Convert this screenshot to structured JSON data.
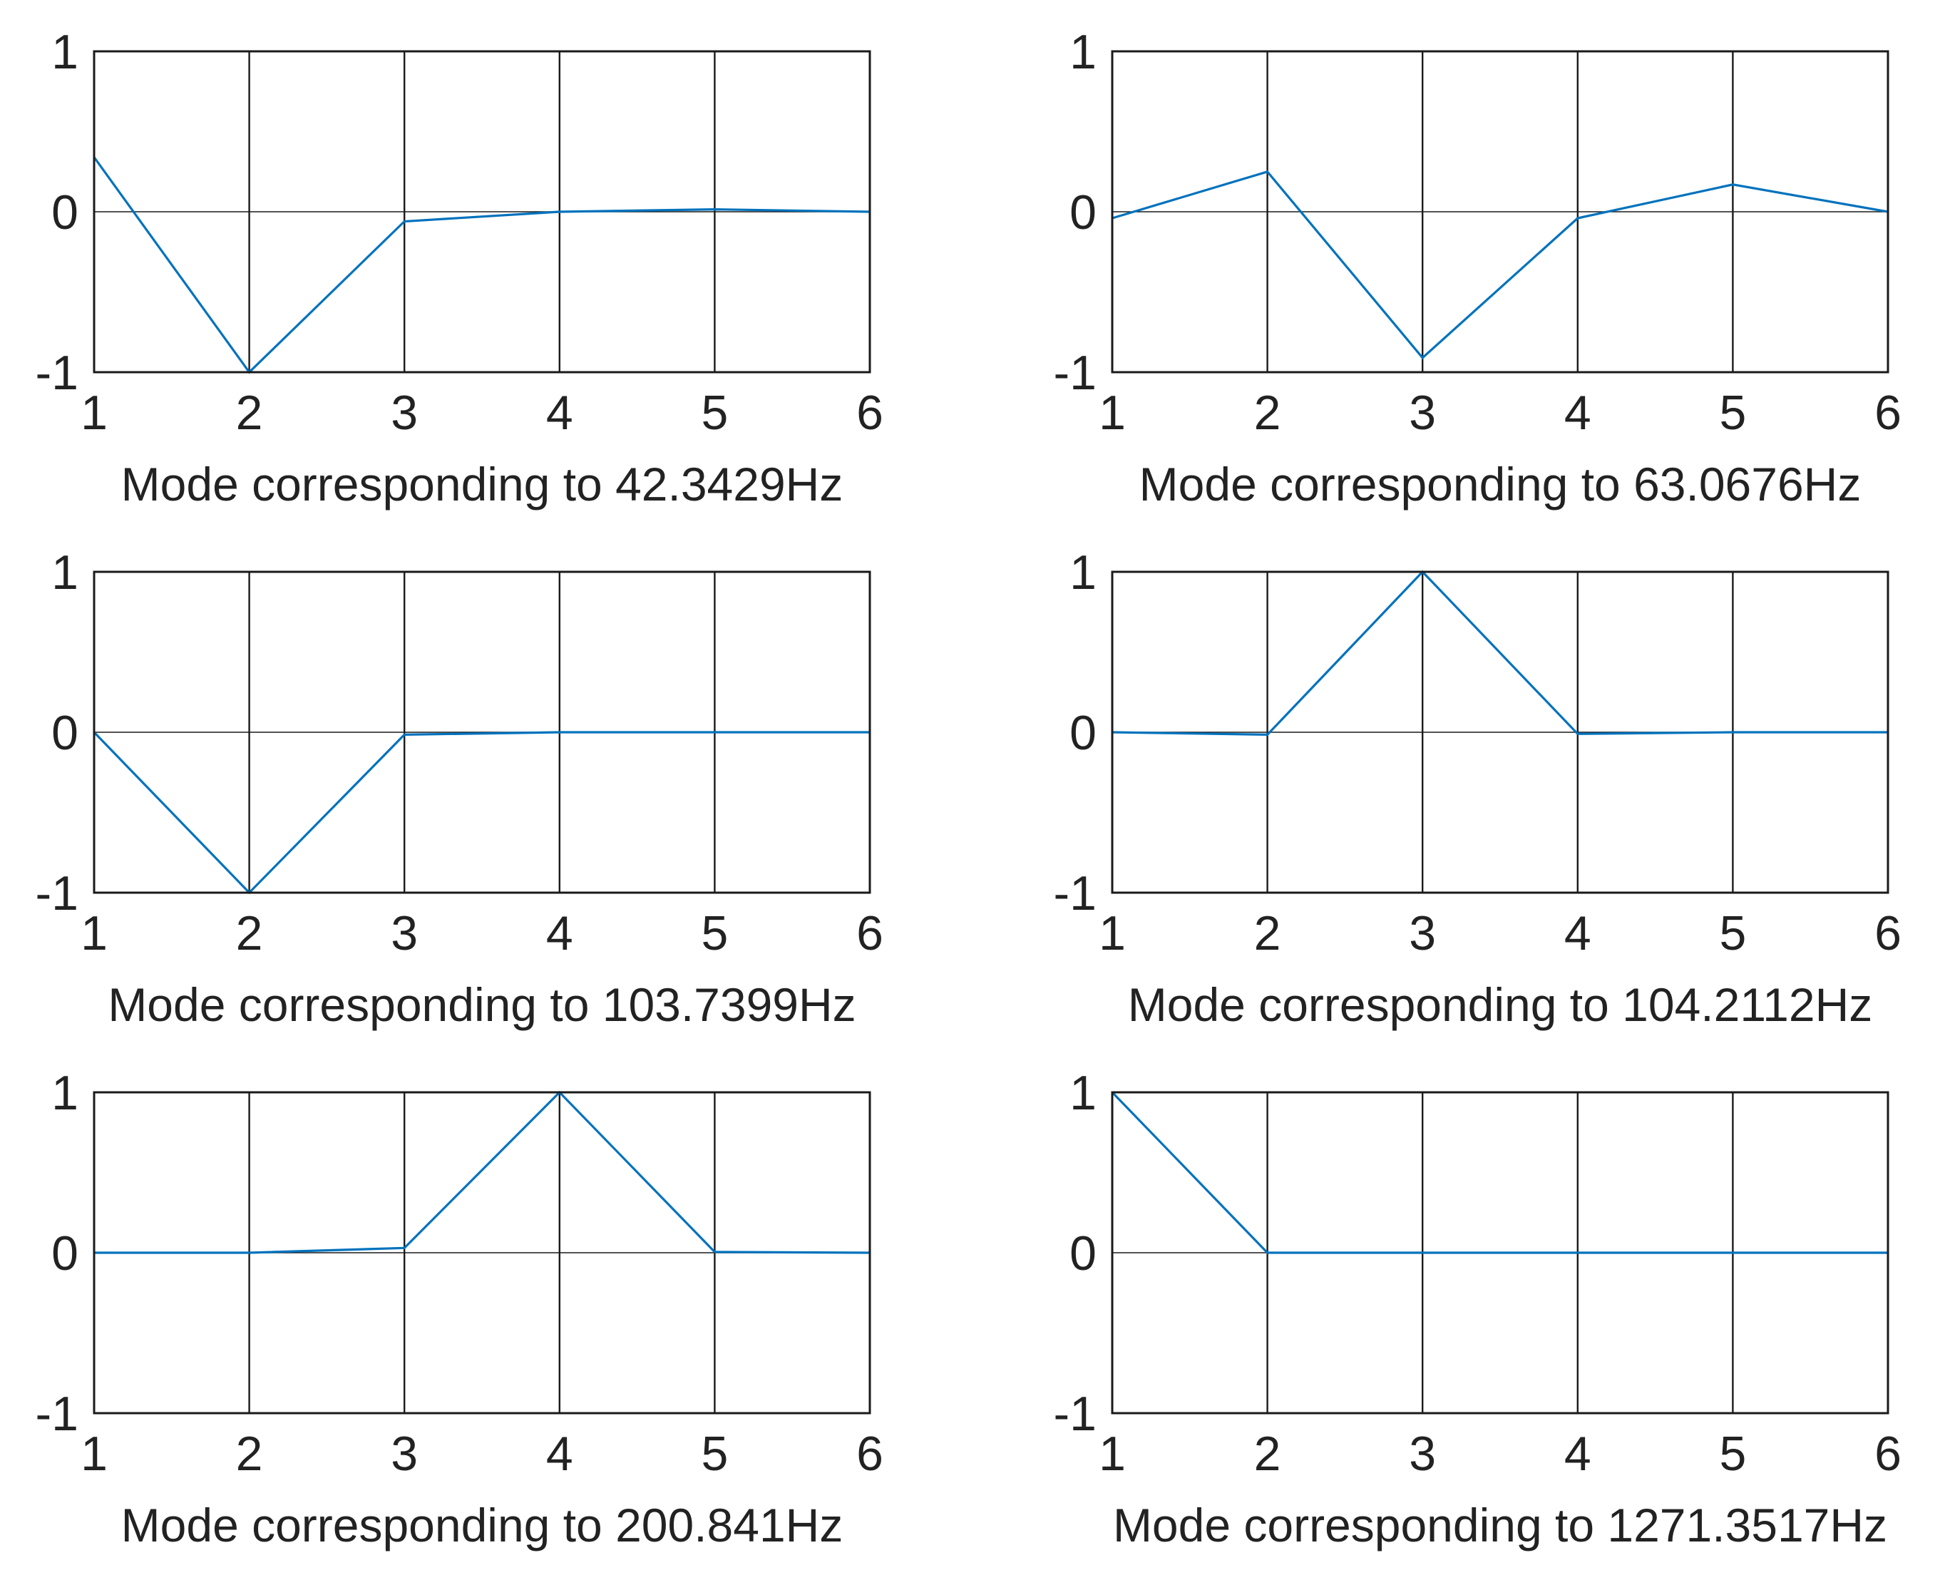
{
  "colors": {
    "line": "#0072BD",
    "axes": "#1a1a1a",
    "grid": "#1a1a1a",
    "background": "#ffffff"
  },
  "chart_data": [
    {
      "type": "line",
      "xlabel": "Mode corresponding to 42.3429Hz",
      "x": [
        1,
        2,
        3,
        4,
        5,
        6
      ],
      "series": [
        {
          "values": [
            0.34,
            -1.0,
            -0.06,
            0.0,
            0.015,
            0.0
          ]
        }
      ],
      "xlim": [
        1,
        6
      ],
      "ylim": [
        -1,
        1
      ],
      "xticks": [
        "1",
        "2",
        "3",
        "4",
        "5",
        "6"
      ],
      "yticks": [
        "-1",
        "0",
        "1"
      ],
      "grid": true
    },
    {
      "type": "line",
      "xlabel": "Mode corresponding to 63.0676Hz",
      "x": [
        1,
        2,
        3,
        4,
        5,
        6
      ],
      "series": [
        {
          "values": [
            -0.04,
            0.25,
            -0.91,
            -0.04,
            0.17,
            0.0
          ]
        }
      ],
      "xlim": [
        1,
        6
      ],
      "ylim": [
        -1,
        1
      ],
      "xticks": [
        "1",
        "2",
        "3",
        "4",
        "5",
        "6"
      ],
      "yticks": [
        "-1",
        "0",
        "1"
      ],
      "grid": true
    },
    {
      "type": "line",
      "xlabel": "Mode corresponding to 103.7399Hz",
      "x": [
        1,
        2,
        3,
        4,
        5,
        6
      ],
      "series": [
        {
          "values": [
            0.0,
            -1.0,
            -0.015,
            0.0,
            0.0,
            0.0
          ]
        }
      ],
      "xlim": [
        1,
        6
      ],
      "ylim": [
        -1,
        1
      ],
      "xticks": [
        "1",
        "2",
        "3",
        "4",
        "5",
        "6"
      ],
      "yticks": [
        "-1",
        "0",
        "1"
      ],
      "grid": true
    },
    {
      "type": "line",
      "xlabel": "Mode corresponding to 104.2112Hz",
      "x": [
        1,
        2,
        3,
        4,
        5,
        6
      ],
      "series": [
        {
          "values": [
            0.0,
            -0.015,
            1.0,
            -0.01,
            0.0,
            0.0
          ]
        }
      ],
      "xlim": [
        1,
        6
      ],
      "ylim": [
        -1,
        1
      ],
      "xticks": [
        "1",
        "2",
        "3",
        "4",
        "5",
        "6"
      ],
      "yticks": [
        "-1",
        "0",
        "1"
      ],
      "grid": true
    },
    {
      "type": "line",
      "xlabel": "Mode corresponding to 200.841Hz",
      "x": [
        1,
        2,
        3,
        4,
        5,
        6
      ],
      "series": [
        {
          "values": [
            0.0,
            0.0,
            0.03,
            1.0,
            0.005,
            0.0
          ]
        }
      ],
      "xlim": [
        1,
        6
      ],
      "ylim": [
        -1,
        1
      ],
      "xticks": [
        "1",
        "2",
        "3",
        "4",
        "5",
        "6"
      ],
      "yticks": [
        "-1",
        "0",
        "1"
      ],
      "grid": true
    },
    {
      "type": "line",
      "xlabel": "Mode corresponding to 1271.3517Hz",
      "x": [
        1,
        2,
        3,
        4,
        5,
        6
      ],
      "series": [
        {
          "values": [
            1.0,
            0.0,
            0.0,
            0.0,
            0.0,
            0.0
          ]
        }
      ],
      "xlim": [
        1,
        6
      ],
      "ylim": [
        -1,
        1
      ],
      "xticks": [
        "1",
        "2",
        "3",
        "4",
        "5",
        "6"
      ],
      "yticks": [
        "-1",
        "0",
        "1"
      ],
      "grid": true
    }
  ]
}
